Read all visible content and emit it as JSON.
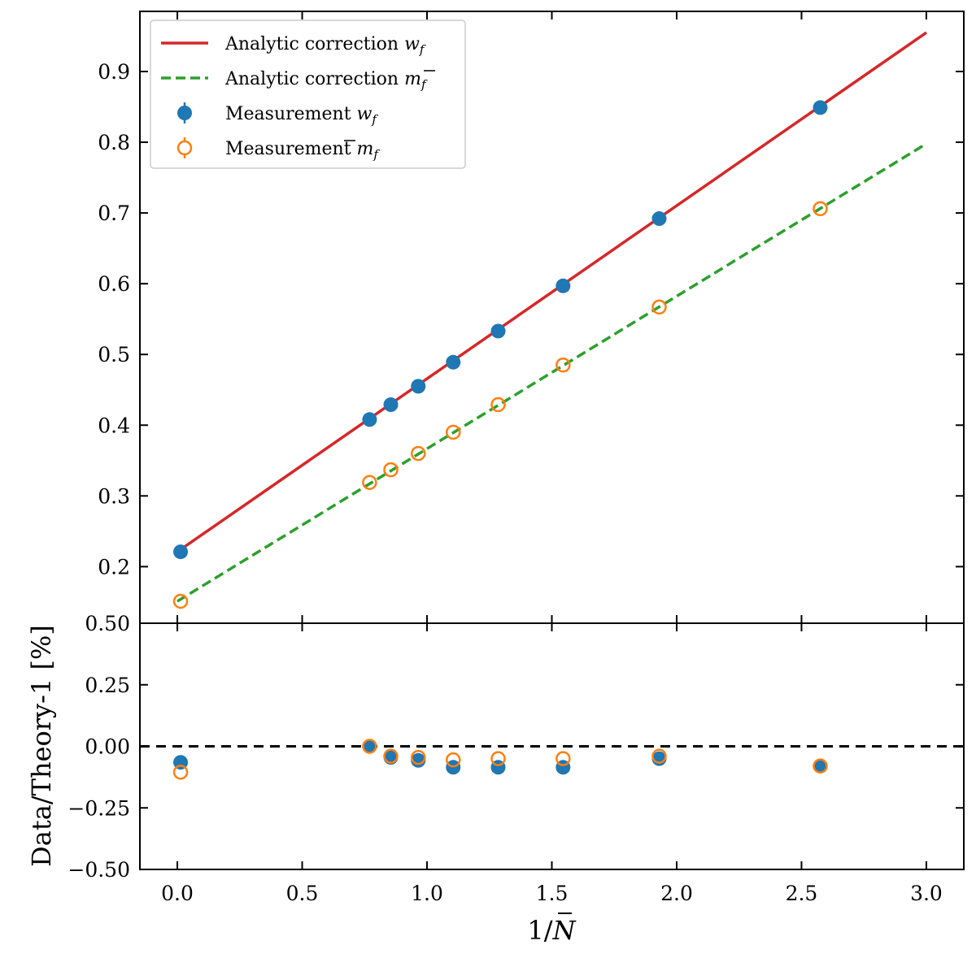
{
  "chart_data": [
    {
      "type": "line",
      "panel": "main",
      "xlabel": "",
      "ylabel": "",
      "xlim": [
        -0.15,
        3.15
      ],
      "ylim": [
        0.12,
        0.985
      ],
      "yticks": [
        0.2,
        0.3,
        0.4,
        0.5,
        0.6,
        0.7,
        0.8,
        0.9
      ],
      "ytick_labels": [
        "0.2",
        "0.3",
        "0.4",
        "0.5",
        "0.6",
        "0.7",
        "0.8",
        "0.9"
      ],
      "legend": "top-left",
      "grid": false,
      "series": [
        {
          "name": "Analytic correction w_f",
          "legend_text": "Analytic correction ",
          "legend_math": "w",
          "legend_sub": "f",
          "legend_bar": false,
          "kind": "line",
          "style": "solid",
          "color": "#d62728",
          "x": [
            0.0,
            3.0
          ],
          "y": [
            0.221,
            0.955
          ]
        },
        {
          "name": "Analytic correction m̄_f",
          "legend_text": "Analytic correction ",
          "legend_math": "m",
          "legend_sub": "f",
          "legend_bar": true,
          "kind": "line",
          "style": "dashed",
          "color": "#2ca02c",
          "x": [
            0.0,
            3.0
          ],
          "y": [
            0.151,
            0.798
          ]
        },
        {
          "name": "Measurement w_f",
          "legend_text": "Measurement ",
          "legend_math": "w",
          "legend_sub": "f",
          "legend_bar": false,
          "kind": "marker",
          "fill": "filled",
          "color": "#1f77b4",
          "x": [
            0.013,
            0.77,
            0.855,
            0.965,
            1.105,
            1.285,
            1.545,
            1.93,
            2.575
          ],
          "y": [
            0.221,
            0.408,
            0.429,
            0.455,
            0.489,
            0.533,
            0.597,
            0.692,
            0.849
          ]
        },
        {
          "name": "Measurement m̄_f",
          "legend_text": "Measurement ",
          "legend_math": "m",
          "legend_sub": "f",
          "legend_bar": true,
          "kind": "marker",
          "fill": "hollow",
          "color": "#ff7f0e",
          "x": [
            0.013,
            0.77,
            0.855,
            0.965,
            1.105,
            1.285,
            1.545,
            1.93,
            2.575
          ],
          "y": [
            0.151,
            0.319,
            0.337,
            0.36,
            0.39,
            0.429,
            0.485,
            0.567,
            0.706
          ]
        }
      ]
    },
    {
      "type": "scatter",
      "panel": "residual",
      "xlabel": "1/N̄",
      "xlabel_pre": "1/",
      "xlabel_math": "N",
      "ylabel": "Data/Theory-1 [%]",
      "xlim": [
        -0.15,
        3.15
      ],
      "ylim": [
        -0.5,
        0.5
      ],
      "xticks": [
        0.0,
        0.5,
        1.0,
        1.5,
        2.0,
        2.5,
        3.0
      ],
      "xtick_labels": [
        "0.0",
        "0.5",
        "1.0",
        "1.5",
        "2.0",
        "2.5",
        "3.0"
      ],
      "yticks": [
        -0.5,
        -0.25,
        0.0,
        0.25,
        0.5
      ],
      "ytick_labels": [
        "−0.50",
        "−0.25",
        "0.00",
        "0.25",
        "0.50"
      ],
      "reference_line": 0.0,
      "series": [
        {
          "name": "w_f residual",
          "fill": "filled",
          "color": "#1f77b4",
          "x": [
            0.013,
            0.77,
            0.855,
            0.965,
            1.105,
            1.285,
            1.545,
            1.93,
            2.575
          ],
          "y": [
            -0.065,
            0.0,
            -0.045,
            -0.057,
            -0.085,
            -0.085,
            -0.085,
            -0.05,
            -0.08
          ]
        },
        {
          "name": "m̄_f residual",
          "fill": "hollow",
          "color": "#ff7f0e",
          "x": [
            0.013,
            0.77,
            0.855,
            0.965,
            1.105,
            1.285,
            1.545,
            1.93,
            2.575
          ],
          "y": [
            -0.105,
            0.0,
            -0.04,
            -0.045,
            -0.055,
            -0.05,
            -0.05,
            -0.04,
            -0.08
          ]
        }
      ]
    }
  ]
}
